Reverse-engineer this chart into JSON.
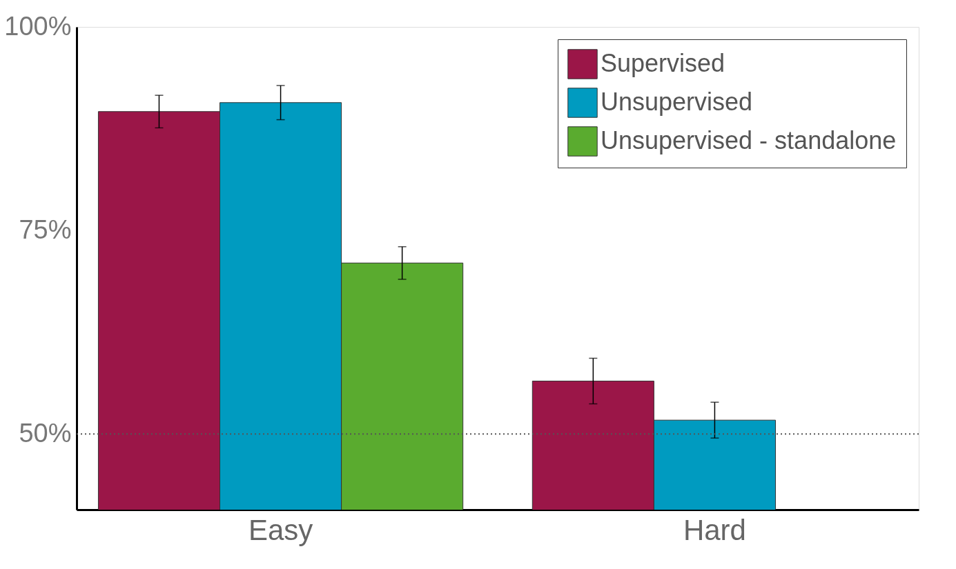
{
  "chart_data": {
    "type": "bar",
    "categories": [
      "Easy",
      "Hard"
    ],
    "series": [
      {
        "name": "Supervised",
        "color": "#9b1648",
        "values": [
          89.6,
          56.5
        ],
        "errors": [
          2.0,
          2.8
        ]
      },
      {
        "name": "Unsupervised",
        "color": "#009bc0",
        "values": [
          90.7,
          51.7
        ],
        "errors": [
          2.1,
          2.2
        ]
      },
      {
        "name": "Unsupervised - standalone",
        "color": "#5aab2f",
        "values": [
          71.0,
          null
        ],
        "errors": [
          2.0,
          null
        ]
      }
    ],
    "ylim": [
      40.7,
      100
    ],
    "yticks": [
      {
        "value": 50,
        "label": "50%"
      },
      {
        "value": 75,
        "label": "75%"
      },
      {
        "value": 100,
        "label": "100%"
      }
    ],
    "ref_lines": [
      {
        "axis": "y",
        "value": 50,
        "line_style": "dotted",
        "color": "#555555"
      }
    ],
    "grid": false,
    "legend": "top right"
  }
}
